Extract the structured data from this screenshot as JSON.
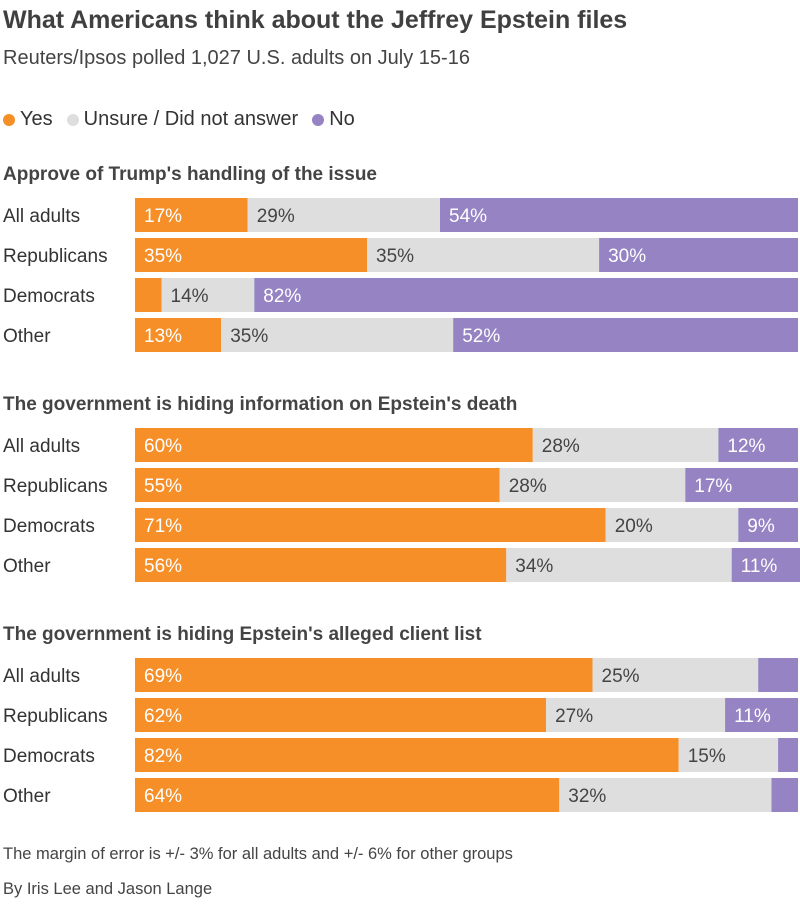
{
  "title": "What Americans think about the Jeffrey Epstein files",
  "subtitle": "Reuters/Ipsos polled 1,027 U.S. adults on July 15-16",
  "legend": [
    {
      "name": "legend-yes",
      "label": "Yes",
      "color": "#F68F28"
    },
    {
      "name": "legend-unsure",
      "label": "Unsure / Did not answer",
      "color": "#DEDEDE"
    },
    {
      "name": "legend-no",
      "label": "No",
      "color": "#9583C3"
    }
  ],
  "footnote": "The margin of error is +/- 3% for all adults and +/- 6% for other groups",
  "byline": "By Iris Lee and Jason Lange",
  "chart_data": [
    {
      "type": "bar",
      "stacked": true,
      "orientation": "horizontal",
      "title": "Approve of Trump's handling of the issue",
      "categories": [
        "All adults",
        "Republicans",
        "Democrats",
        "Other"
      ],
      "series": [
        {
          "name": "Yes",
          "values": [
            17,
            35,
            4,
            13
          ],
          "labels": [
            "17%",
            "35%",
            "",
            "13%"
          ]
        },
        {
          "name": "Unsure / Did not answer",
          "values": [
            29,
            35,
            14,
            35
          ],
          "labels": [
            "29%",
            "35%",
            "14%",
            "35%"
          ]
        },
        {
          "name": "No",
          "values": [
            54,
            30,
            82,
            52
          ],
          "labels": [
            "54%",
            "30%",
            "82%",
            "52%"
          ]
        }
      ]
    },
    {
      "type": "bar",
      "stacked": true,
      "orientation": "horizontal",
      "title": "The government is hiding information on Epstein's death",
      "categories": [
        "All adults",
        "Republicans",
        "Democrats",
        "Other"
      ],
      "series": [
        {
          "name": "Yes",
          "values": [
            60,
            55,
            71,
            56
          ],
          "labels": [
            "60%",
            "55%",
            "71%",
            "56%"
          ]
        },
        {
          "name": "Unsure / Did not answer",
          "values": [
            28,
            28,
            20,
            34
          ],
          "labels": [
            "28%",
            "28%",
            "20%",
            "34%"
          ]
        },
        {
          "name": "No",
          "values": [
            12,
            17,
            9,
            11
          ],
          "labels": [
            "12%",
            "17%",
            "9%",
            "11%"
          ]
        }
      ]
    },
    {
      "type": "bar",
      "stacked": true,
      "orientation": "horizontal",
      "title": "The government is hiding Epstein's alleged client list",
      "categories": [
        "All adults",
        "Republicans",
        "Democrats",
        "Other"
      ],
      "series": [
        {
          "name": "Yes",
          "values": [
            69,
            62,
            82,
            64
          ],
          "labels": [
            "69%",
            "62%",
            "82%",
            "64%"
          ]
        },
        {
          "name": "Unsure / Did not answer",
          "values": [
            25,
            27,
            15,
            32
          ],
          "labels": [
            "25%",
            "27%",
            "15%",
            "32%"
          ]
        },
        {
          "name": "No",
          "values": [
            6,
            11,
            3,
            4
          ],
          "labels": [
            "",
            "11%",
            "",
            ""
          ]
        }
      ]
    }
  ]
}
